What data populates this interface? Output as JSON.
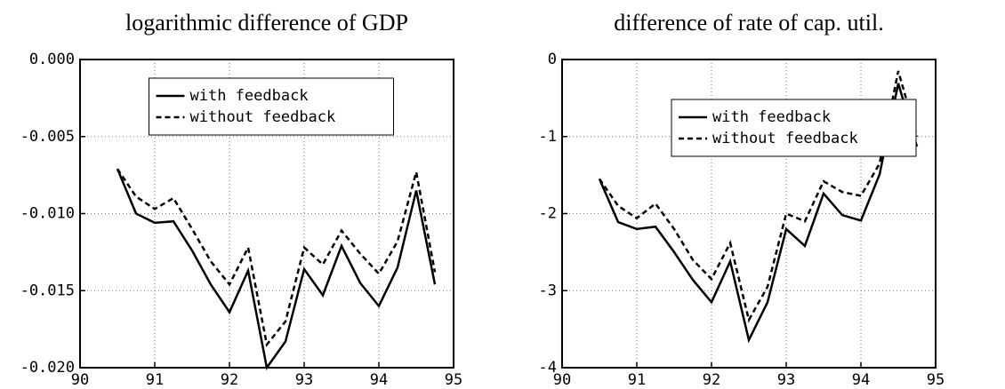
{
  "chart_data": [
    {
      "type": "line",
      "title": "logarithmic difference of GDP",
      "x": [
        90.5,
        90.75,
        91,
        91.25,
        91.5,
        91.75,
        92,
        92.25,
        92.5,
        92.75,
        93,
        93.25,
        93.5,
        93.75,
        94,
        94.25,
        94.5,
        94.75
      ],
      "series": [
        {
          "name": "with feedback",
          "color": "#000000",
          "linestyle": "solid",
          "values": [
            -0.0071,
            -0.01,
            -0.0106,
            -0.0105,
            -0.0124,
            -0.0146,
            -0.0164,
            -0.0137,
            -0.02,
            -0.0183,
            -0.0136,
            -0.0153,
            -0.0121,
            -0.0145,
            -0.016,
            -0.0135,
            -0.0085,
            -0.0146
          ]
        },
        {
          "name": "without feedback",
          "color": "#000000",
          "linestyle": "dashed",
          "values": [
            -0.0071,
            -0.0089,
            -0.0097,
            -0.009,
            -0.011,
            -0.0131,
            -0.0146,
            -0.0122,
            -0.0185,
            -0.017,
            -0.0122,
            -0.0133,
            -0.0111,
            -0.0126,
            -0.0139,
            -0.0118,
            -0.0073,
            -0.0138
          ]
        }
      ],
      "xlim": [
        90,
        95
      ],
      "xticks": [
        90,
        91,
        92,
        93,
        94,
        95
      ],
      "ylim": [
        -0.02,
        0
      ],
      "yticks": [
        {
          "value": 0,
          "label": "0.000"
        },
        -0.005,
        {
          "value": -0.01,
          "label": "-0.010"
        },
        -0.015,
        {
          "value": -0.02,
          "label": "-0.020"
        }
      ],
      "grid": true,
      "legend": "upper center"
    },
    {
      "type": "line",
      "title": "difference of rate of cap. util.",
      "x": [
        90.5,
        90.75,
        91,
        91.25,
        91.5,
        91.75,
        92,
        92.25,
        92.5,
        92.75,
        93,
        93.25,
        93.5,
        93.75,
        94,
        94.25,
        94.5,
        94.75
      ],
      "series": [
        {
          "name": "with feedback",
          "color": "#000000",
          "linestyle": "solid",
          "values": [
            -1.55,
            -2.11,
            -2.2,
            -2.17,
            -2.5,
            -2.86,
            -3.15,
            -2.62,
            -3.64,
            -3.15,
            -2.2,
            -2.42,
            -1.74,
            -2.02,
            -2.09,
            -1.49,
            -0.31,
            -1.13
          ]
        },
        {
          "name": "without feedback",
          "color": "#000000",
          "linestyle": "dashed",
          "values": [
            -1.55,
            -1.9,
            -2.06,
            -1.87,
            -2.2,
            -2.6,
            -2.85,
            -2.38,
            -3.38,
            -2.95,
            -2.0,
            -2.1,
            -1.58,
            -1.72,
            -1.77,
            -1.35,
            -0.15,
            -1.0
          ]
        }
      ],
      "xlim": [
        90,
        95
      ],
      "xticks": [
        90,
        91,
        92,
        93,
        94,
        95
      ],
      "ylim": [
        -4,
        0
      ],
      "yticks": [
        0,
        -1,
        -2,
        -3,
        -4
      ],
      "grid": true,
      "legend": "upper right"
    }
  ]
}
